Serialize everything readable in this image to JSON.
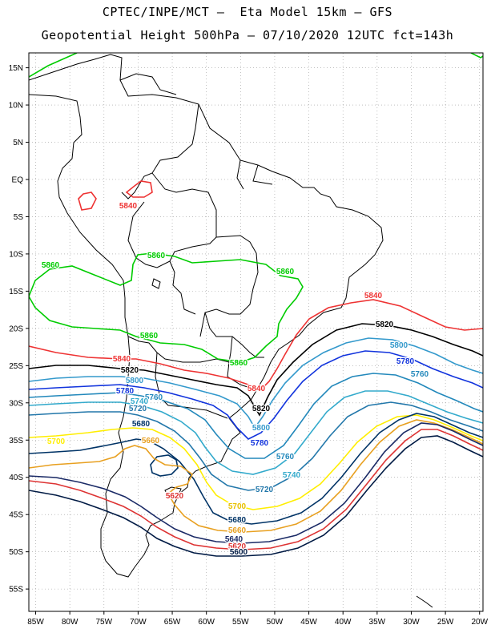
{
  "header": {
    "line1": "CPTEC/INPE/MCT –  Eta Model 15km – GFS",
    "line2": "Geopotential Height 500hPa – 07/10/2020 12UTC fct=143h"
  },
  "axes": {
    "lat_labels": [
      "15N",
      "10N",
      "5N",
      "EQ",
      "5S",
      "10S",
      "15S",
      "20S",
      "25S",
      "30S",
      "35S",
      "40S",
      "45S",
      "50S",
      "55S"
    ],
    "lat_values": [
      15,
      10,
      5,
      0,
      -5,
      -10,
      -15,
      -20,
      -25,
      -30,
      -35,
      -40,
      -45,
      -50,
      -55
    ],
    "lon_labels": [
      "85W",
      "80W",
      "75W",
      "70W",
      "65W",
      "60W",
      "55W",
      "50W",
      "45W",
      "40W",
      "35W",
      "30W",
      "25W",
      "20W"
    ],
    "lon_values": [
      -85,
      -80,
      -75,
      -70,
      -65,
      -60,
      -55,
      -50,
      -45,
      -40,
      -35,
      -30,
      -25,
      -20
    ],
    "lon_range": [
      -86,
      -19.5
    ],
    "lat_range": [
      -58,
      17
    ]
  },
  "contours": [
    {
      "level": "5860",
      "color": "#00cc00"
    },
    {
      "level": "5840",
      "color": "#ee3333"
    },
    {
      "level": "5820",
      "color": "#000000"
    },
    {
      "level": "5800",
      "color": "#3399cc"
    },
    {
      "level": "5780",
      "color": "#1133dd"
    },
    {
      "level": "5760",
      "color": "#2288bb"
    },
    {
      "level": "5740",
      "color": "#33aacc"
    },
    {
      "level": "5720",
      "color": "#2277aa"
    },
    {
      "level": "5700",
      "color": "#ffee00"
    },
    {
      "level": "5680",
      "color": "#003366"
    },
    {
      "level": "5660",
      "color": "#e8a020"
    },
    {
      "level": "5640",
      "color": "#1a2a66"
    },
    {
      "level": "5620",
      "color": "#dd3333"
    },
    {
      "level": "5600",
      "color": "#001a44"
    }
  ],
  "labels": {
    "l5840_amazon": "5840",
    "l5860_w": "5860",
    "l5860_c": "5860",
    "l5860_e": "5860",
    "l5840_e": "5840",
    "l5820_e": "5820",
    "l5800_e": "5800",
    "l5780_e": "5780",
    "l5760_e": "5760",
    "l5860_s": "5860",
    "l5860_se": "5860",
    "l5840_w": "5840",
    "l5820_w": "5820",
    "l5800_w": "5800",
    "l5780_w": "5780",
    "l5760_w": "5760",
    "l5740_w": "5740",
    "l5720_w": "5720",
    "l5840_m": "5840",
    "l5820_m": "5820",
    "l5800_m": "5800",
    "l5780_m": "5780",
    "l5760_m": "5760",
    "l5740_m": "5740",
    "l5720_m": "5720",
    "l5700_w": "5700",
    "l5680_w": "5680",
    "l5660_w": "5660",
    "l5700_s": "5700",
    "l5680_s": "5680",
    "l5660_s": "5660",
    "l5640_s": "5640",
    "l5620_s": "5620",
    "l5600_s": "5600",
    "l5620_p": "5620"
  }
}
